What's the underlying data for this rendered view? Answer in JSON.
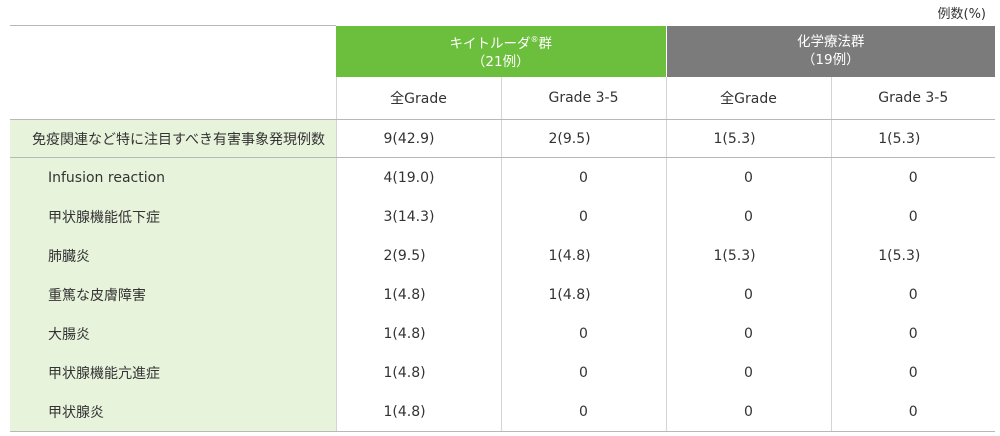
{
  "unit_note": "例数(%)",
  "header": {
    "keytruda_group": {
      "name": "キイトルーダ",
      "reg": "®",
      "suffix": "群",
      "n": "（21例）"
    },
    "chemo_group": {
      "name": "化学療法群",
      "n": "（19例）"
    },
    "subcols": [
      "全Grade",
      "Grade 3-5",
      "全Grade",
      "Grade 3-5"
    ]
  },
  "total_row": {
    "label": "免疫関連など特に注目すべき有害事象発現例数",
    "values": [
      "9(42.9)",
      "2(9.5)",
      "1(5.3)",
      "1(5.3)"
    ]
  },
  "rows": [
    {
      "label": "Infusion reaction",
      "values": [
        "4(19.0)",
        "0",
        "0",
        "0"
      ]
    },
    {
      "label": "甲状腺機能低下症",
      "values": [
        "3(14.3)",
        "0",
        "0",
        "0"
      ]
    },
    {
      "label": "肺臓炎",
      "values": [
        "2(9.5)",
        "1(4.8)",
        "1(5.3)",
        "1(5.3)"
      ]
    },
    {
      "label": "重篤な皮膚障害",
      "values": [
        "1(4.8)",
        "1(4.8)",
        "0",
        "0"
      ]
    },
    {
      "label": "大腸炎",
      "values": [
        "1(4.8)",
        "0",
        "0",
        "0"
      ]
    },
    {
      "label": "甲状腺機能亢進症",
      "values": [
        "1(4.8)",
        "0",
        "0",
        "0"
      ]
    },
    {
      "label": "甲状腺炎",
      "values": [
        "1(4.8)",
        "0",
        "0",
        "0"
      ]
    }
  ],
  "colors": {
    "keytruda_header": "#6cbf3c",
    "chemo_header": "#7b7b7b",
    "label_bg": "#e8f3dc"
  }
}
